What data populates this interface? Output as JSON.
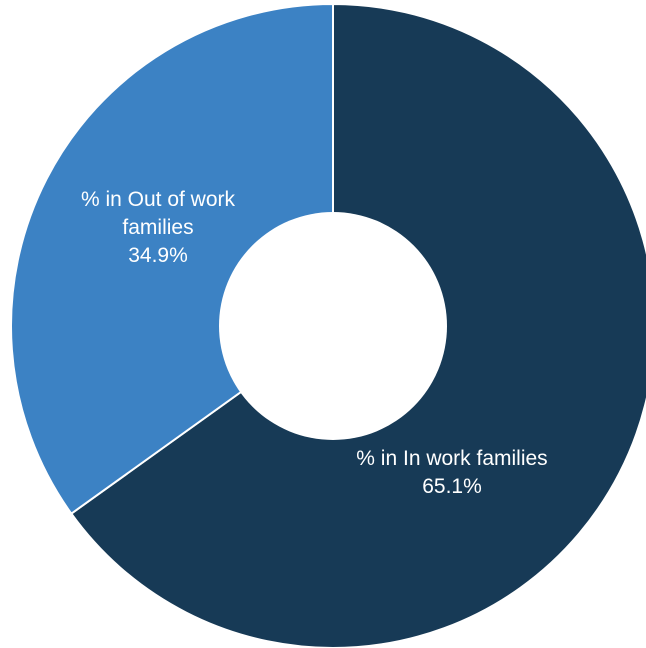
{
  "chart_data": {
    "type": "pie",
    "variant": "donut",
    "categories": [
      "% in In work families",
      "% in Out of work families"
    ],
    "values": [
      65.1,
      34.9
    ],
    "value_labels": [
      "65.1%",
      "34.9%"
    ],
    "colors": [
      "#173A56",
      "#3C82C4"
    ],
    "label_lines": [
      [
        "% in In work families",
        "65.1%"
      ],
      [
        "% in Out of work",
        "families",
        "34.9%"
      ]
    ],
    "title": "",
    "legend": "none"
  }
}
